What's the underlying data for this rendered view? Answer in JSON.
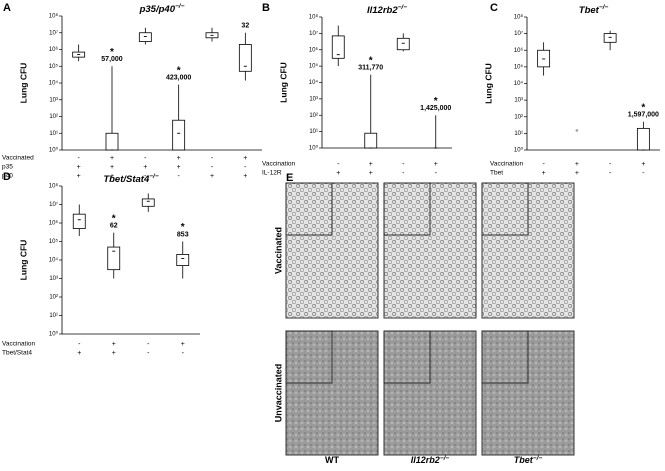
{
  "chart_data": [
    {
      "type": "box",
      "panel": "A",
      "title": "p35/p40",
      "title_sup": "−/−",
      "ylabel": "Lung CFU",
      "log_scale": true,
      "color": "#000000",
      "ylim": [
        1,
        100000000
      ],
      "yticks": [
        {
          "value": 1,
          "label": "10⁰"
        },
        {
          "value": 10,
          "label": "10¹"
        },
        {
          "value": 100,
          "label": "10²"
        },
        {
          "value": 1000,
          "label": "10³"
        },
        {
          "value": 10000,
          "label": "10⁴"
        },
        {
          "value": 100000,
          "label": "10⁵"
        },
        {
          "value": 1000000,
          "label": "10⁶"
        },
        {
          "value": 10000000,
          "label": "10⁷"
        },
        {
          "value": 100000000,
          "label": "10⁸"
        }
      ],
      "boxes": [
        {
          "whislo": 200000,
          "q1": 350000,
          "med": 500000,
          "q3": 700000,
          "whishi": 2000000
        },
        {
          "whislo": 1,
          "q1": 1,
          "med": 1,
          "q3": 10,
          "whishi": 100000
        },
        {
          "whislo": 2000000,
          "q1": 3000000,
          "med": 6000000,
          "q3": 10000000,
          "whishi": 20000000
        },
        {
          "whislo": 1,
          "q1": 1,
          "med": 10,
          "q3": 60,
          "whishi": 8000
        },
        {
          "whislo": 3000000,
          "q1": 5000000,
          "med": 7000000,
          "q3": 10000000,
          "whishi": 20000000
        },
        {
          "whislo": 14000,
          "q1": 50000,
          "med": 100000,
          "q3": 2000000,
          "whishi": 10000000
        }
      ],
      "annotations": [
        null,
        {
          "star": "*",
          "text": "57,000"
        },
        null,
        {
          "star": "*",
          "text": "423,000"
        },
        null,
        {
          "text": "32"
        }
      ],
      "conditions": [
        {
          "name": "Vaccinated",
          "marks": [
            "-",
            "+",
            "-",
            "+",
            "-",
            "+"
          ]
        },
        {
          "name": "p35",
          "marks": [
            "+",
            "+",
            "+",
            "+",
            "-",
            "-"
          ]
        },
        {
          "name": "p40",
          "marks": [
            "+",
            "+",
            "-",
            "-",
            "+",
            "+"
          ]
        }
      ]
    },
    {
      "type": "box",
      "panel": "B",
      "title": "Il12rb2",
      "title_sup": "−/−",
      "ylabel": "Lung CFU",
      "log_scale": true,
      "color": "#000000",
      "ylim": [
        1,
        100000000
      ],
      "yticks": [
        {
          "value": 1,
          "label": "10⁰"
        },
        {
          "value": 10,
          "label": "10¹"
        },
        {
          "value": 100,
          "label": "10²"
        },
        {
          "value": 1000,
          "label": "10³"
        },
        {
          "value": 10000,
          "label": "10⁴"
        },
        {
          "value": 100000,
          "label": "10⁵"
        },
        {
          "value": 1000000,
          "label": "10⁶"
        },
        {
          "value": 10000000,
          "label": "10⁷"
        },
        {
          "value": 100000000,
          "label": "10⁸"
        }
      ],
      "boxes": [
        {
          "whislo": 100000,
          "q1": 300000,
          "med": 500000,
          "q3": 7000000,
          "whishi": 30000000
        },
        {
          "whislo": 1,
          "q1": 1,
          "med": 1,
          "q3": 8,
          "whishi": 30000
        },
        {
          "whislo": 800000,
          "q1": 1000000,
          "med": 2500000,
          "q3": 5000000,
          "whishi": 10000000
        },
        {
          "whislo": 1,
          "q1": 1,
          "med": 1,
          "q3": 1,
          "whishi": 100
        }
      ],
      "annotations": [
        null,
        {
          "star": "*",
          "text": "311,770"
        },
        null,
        {
          "star": "*",
          "text": "1,425,000"
        }
      ],
      "conditions": [
        {
          "name": "Vaccination",
          "marks": [
            "-",
            "+",
            "-",
            "+"
          ]
        },
        {
          "name": "IL-12R",
          "marks": [
            "+",
            "+",
            "-",
            "-"
          ]
        }
      ]
    },
    {
      "type": "box",
      "panel": "C",
      "title": "Tbet",
      "title_sup": "−/−",
      "ylabel": "Lung CFU",
      "log_scale": true,
      "color": "#000000",
      "ylim": [
        1,
        100000000
      ],
      "yticks": [
        {
          "value": 1,
          "label": "10⁰"
        },
        {
          "value": 10,
          "label": "10¹"
        },
        {
          "value": 100,
          "label": "10²"
        },
        {
          "value": 1000,
          "label": "10³"
        },
        {
          "value": 10000,
          "label": "10⁴"
        },
        {
          "value": 100000,
          "label": "10⁵"
        },
        {
          "value": 1000000,
          "label": "10⁶"
        },
        {
          "value": 10000000,
          "label": "10⁷"
        },
        {
          "value": 100000000,
          "label": "10⁸"
        }
      ],
      "boxes": [
        {
          "whislo": 30000,
          "q1": 100000,
          "med": 300000,
          "q3": 1000000,
          "whishi": 3000000
        },
        null,
        {
          "whislo": 1000000,
          "q1": 3000000,
          "med": 6000000,
          "q3": 10000000,
          "whishi": 15000000
        },
        {
          "whislo": 1,
          "q1": 1,
          "med": 1,
          "q3": 20,
          "whishi": 50
        }
      ],
      "points": [
        null,
        15,
        null,
        null
      ],
      "annotations": [
        null,
        null,
        null,
        {
          "star": "*",
          "text": "1,597,000"
        }
      ],
      "conditions": [
        {
          "name": "Vaccination",
          "marks": [
            "-",
            "+",
            "-",
            "+"
          ]
        },
        {
          "name": "Tbet",
          "marks": [
            "+",
            "+",
            "-",
            "-"
          ]
        }
      ]
    },
    {
      "type": "box",
      "panel": "D",
      "title": "Tbet/Stat4",
      "title_sup": "−/−",
      "ylabel": "Lung CFU",
      "log_scale": true,
      "color": "#000000",
      "ylim": [
        1,
        100000000
      ],
      "yticks": [
        {
          "value": 1,
          "label": "10⁰"
        },
        {
          "value": 10,
          "label": "10¹"
        },
        {
          "value": 100,
          "label": "10²"
        },
        {
          "value": 1000,
          "label": "10³"
        },
        {
          "value": 10000,
          "label": "10⁴"
        },
        {
          "value": 100000,
          "label": "10⁵"
        },
        {
          "value": 1000000,
          "label": "10⁶"
        },
        {
          "value": 10000000,
          "label": "10⁷"
        },
        {
          "value": 100000000,
          "label": "10⁸"
        }
      ],
      "boxes": [
        {
          "whislo": 200000,
          "q1": 500000,
          "med": 1500000,
          "q3": 3000000,
          "whishi": 10000000
        },
        {
          "whislo": 1000,
          "q1": 3000,
          "med": 30000,
          "q3": 50000,
          "whishi": 300000
        },
        {
          "whislo": 4000000,
          "q1": 8000000,
          "med": 15000000,
          "q3": 20000000,
          "whishi": 40000000
        },
        {
          "whislo": 1000,
          "q1": 5000,
          "med": 12000,
          "q3": 20000,
          "whishi": 100000
        }
      ],
      "annotations": [
        null,
        {
          "star": "*",
          "text": "62"
        },
        null,
        {
          "star": "*",
          "text": "853"
        }
      ],
      "conditions": [
        {
          "name": "Vaccination",
          "marks": [
            "-",
            "+",
            "-",
            "+"
          ]
        },
        {
          "name": "Tbet/Stat4",
          "marks": [
            "+",
            "+",
            "-",
            "-"
          ]
        }
      ]
    }
  ],
  "panel_e": {
    "panel": "E",
    "rows": [
      "Vaccinated",
      "Unvaccinated"
    ],
    "columns": [
      {
        "name": "WT"
      },
      {
        "name": "Il12rb2",
        "sup": "−/−"
      },
      {
        "name": "Tbet",
        "sup": "−/−"
      }
    ]
  }
}
